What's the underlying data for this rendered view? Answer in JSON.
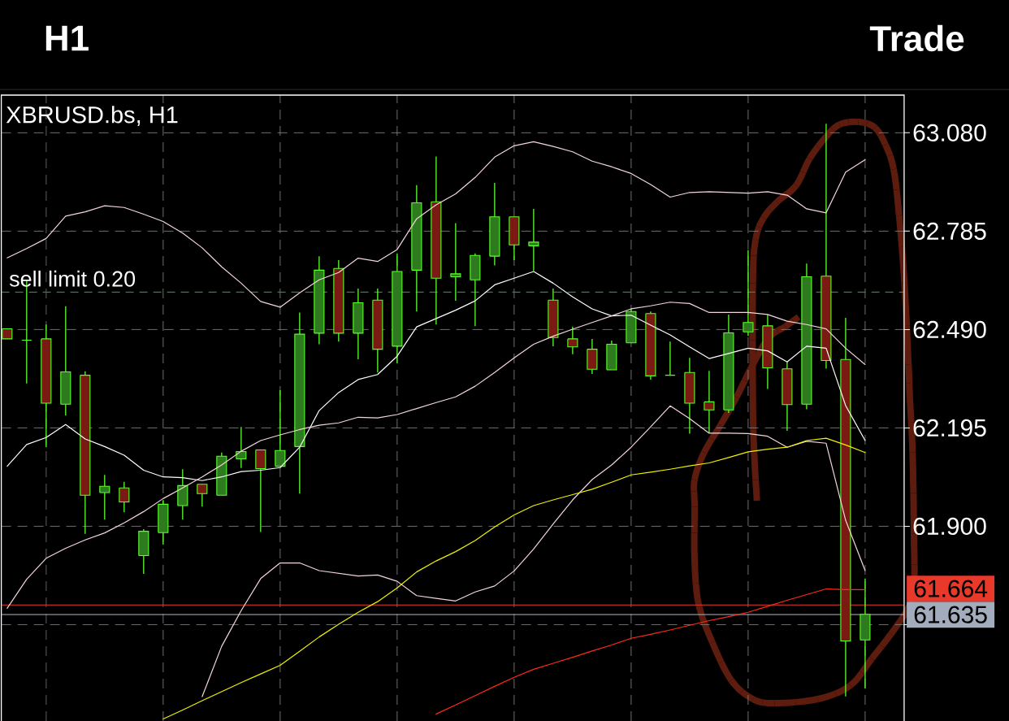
{
  "chart_data": {
    "type": "candlestick",
    "title": "XBRUSD.bs, H1",
    "annotations": [
      "H1",
      "Trade"
    ],
    "categories": [
      null,
      null,
      null,
      null,
      null,
      null,
      null,
      null,
      null,
      null,
      null,
      null,
      null,
      null,
      null,
      null,
      null,
      null,
      null,
      null,
      null,
      null,
      null,
      null,
      null,
      null,
      null,
      null,
      null,
      null,
      null,
      null,
      null,
      null,
      null,
      null,
      null,
      null,
      null,
      null,
      null,
      null,
      null,
      null,
      null
    ],
    "ohlc": [
      [
        62.492,
        62.492,
        62.462,
        62.462
      ],
      [
        62.458,
        62.637,
        62.328,
        62.458
      ],
      [
        62.462,
        62.505,
        62.137,
        62.269
      ],
      [
        62.266,
        62.56,
        62.232,
        62.363
      ],
      [
        62.353,
        62.365,
        61.877,
        61.993
      ],
      [
        62.001,
        62.054,
        61.92,
        62.02
      ],
      [
        62.015,
        62.033,
        61.942,
        61.973
      ],
      [
        61.812,
        61.891,
        61.757,
        61.885
      ],
      [
        61.881,
        61.978,
        61.845,
        61.966
      ],
      [
        61.962,
        62.071,
        61.92,
        62.022
      ],
      [
        62.026,
        62.026,
        61.959,
        61.998
      ],
      [
        61.993,
        62.121,
        61.993,
        62.11
      ],
      [
        62.102,
        62.198,
        62.075,
        62.124
      ],
      [
        62.129,
        62.129,
        61.883,
        62.073
      ],
      [
        62.08,
        62.308,
        62.08,
        62.127
      ],
      [
        62.139,
        62.541,
        61.998,
        62.476
      ],
      [
        62.479,
        62.71,
        62.446,
        62.668
      ],
      [
        62.673,
        62.698,
        62.454,
        62.479
      ],
      [
        62.479,
        62.613,
        62.401,
        62.57
      ],
      [
        62.578,
        62.613,
        62.361,
        62.431
      ],
      [
        62.44,
        62.718,
        62.389,
        62.664
      ],
      [
        62.668,
        62.923,
        62.544,
        62.87
      ],
      [
        62.873,
        63.009,
        62.505,
        62.644
      ],
      [
        62.648,
        62.809,
        62.576,
        62.657
      ],
      [
        62.639,
        62.718,
        62.5,
        62.712
      ],
      [
        62.71,
        62.93,
        62.682,
        62.828
      ],
      [
        62.828,
        62.828,
        62.698,
        62.744
      ],
      [
        62.741,
        62.852,
        62.666,
        62.752
      ],
      [
        62.578,
        62.613,
        62.44,
        62.466
      ],
      [
        62.462,
        62.499,
        62.416,
        62.438
      ],
      [
        62.431,
        62.462,
        62.357,
        62.371
      ],
      [
        62.369,
        62.457,
        62.369,
        62.446
      ],
      [
        62.45,
        62.552,
        62.45,
        62.544
      ],
      [
        62.538,
        62.544,
        62.34,
        62.351
      ],
      [
        62.353,
        62.454,
        62.353,
        62.353
      ],
      [
        62.361,
        62.405,
        62.178,
        62.269
      ],
      [
        62.273,
        62.366,
        62.179,
        62.249
      ],
      [
        62.249,
        62.535,
        62.24,
        62.48
      ],
      [
        62.483,
        62.728,
        62.471,
        62.511
      ],
      [
        62.501,
        62.535,
        62.312,
        62.375
      ],
      [
        62.372,
        62.393,
        62.186,
        62.265
      ],
      [
        62.266,
        62.688,
        62.251,
        62.648
      ],
      [
        62.65,
        63.107,
        62.373,
        62.397
      ],
      [
        62.4,
        62.525,
        61.39,
        61.556
      ],
      [
        61.559,
        61.743,
        61.414,
        61.636
      ]
    ],
    "color": "#5cff2e",
    "colors": [
      "#7a1a12",
      "#5cff2e",
      "#7a1a12",
      "#2e7a1f",
      "#7a1a12",
      "#2e7a1f",
      "#7a1a12",
      "#2e7a1f",
      "#2e7a1f",
      "#2e7a1f",
      "#7a1a12",
      "#2e7a1f",
      "#2e7a1f",
      "#7a1a12",
      "#2e7a1f",
      "#2e7a1f",
      "#2e7a1f",
      "#7a1a12",
      "#2e7a1f",
      "#7a1a12",
      "#2e7a1f",
      "#2e7a1f",
      "#7a1a12",
      "#2e7a1f",
      "#2e7a1f",
      "#2e7a1f",
      "#7a1a12",
      "#2e7a1f",
      "#7a1a12",
      "#7a1a12",
      "#7a1a12",
      "#2e7a1f",
      "#2e7a1f",
      "#7a1a12",
      "#5cff2e",
      "#7a1a12",
      "#7a1a12",
      "#2e7a1f",
      "#2e7a1f",
      "#7a1a12",
      "#7a1a12",
      "#2e7a1f",
      "#7a1a12",
      "#7a1a12",
      "#2e7a1f"
    ],
    "series": [
      {
        "type": "line",
        "color": "#f3d6dc",
        "values": [
          62.705,
          62.733,
          62.763,
          62.83,
          62.843,
          62.861,
          62.856,
          62.836,
          62.814,
          62.779,
          62.735,
          62.678,
          62.629,
          62.574,
          62.557,
          62.6,
          62.639,
          62.661,
          62.704,
          62.694,
          62.73,
          62.822,
          62.864,
          62.897,
          62.946,
          63.007,
          63.041,
          63.053,
          63.039,
          63.023,
          62.995,
          62.978,
          62.958,
          62.925,
          62.887,
          62.901,
          62.903,
          62.901,
          62.899,
          62.903,
          62.893,
          62.852,
          62.84,
          62.962,
          62.999
        ]
      },
      {
        "type": "line",
        "color": "#ffffff",
        "values": [
          62.08,
          62.145,
          62.166,
          62.205,
          62.162,
          62.139,
          62.113,
          62.068,
          62.048,
          62.046,
          62.037,
          62.048,
          62.064,
          62.068,
          62.076,
          62.137,
          62.247,
          62.301,
          62.34,
          62.355,
          62.41,
          62.498,
          62.523,
          62.548,
          62.576,
          62.624,
          62.644,
          62.664,
          62.629,
          62.588,
          62.552,
          62.531,
          62.533,
          62.503,
          62.474,
          62.438,
          62.403,
          62.418,
          62.434,
          62.426,
          62.393,
          62.44,
          62.434,
          62.262,
          62.157
        ]
      },
      {
        "type": "line",
        "color": "#f3d6dc",
        "values": [
          61.654,
          61.741,
          61.804,
          61.834,
          61.859,
          61.88,
          61.91,
          61.944,
          61.983,
          62.015,
          62.048,
          62.084,
          62.125,
          62.157,
          62.174,
          62.19,
          62.203,
          62.21,
          62.227,
          62.225,
          62.235,
          62.253,
          62.271,
          62.288,
          62.32,
          62.361,
          62.405,
          62.446,
          62.47,
          62.491,
          62.511,
          62.531,
          62.552,
          62.561,
          62.572,
          62.568,
          62.541,
          62.541,
          62.541,
          62.535,
          62.515,
          62.505,
          62.492,
          62.434,
          62.385
        ]
      },
      {
        "type": "line",
        "color": "#f3d6dc",
        "values": [
          null,
          null,
          null,
          null,
          null,
          null,
          null,
          null,
          null,
          null,
          61.389,
          61.54,
          61.647,
          61.743,
          61.79,
          61.79,
          61.767,
          61.759,
          61.751,
          61.754,
          61.735,
          61.692,
          61.684,
          61.676,
          61.703,
          61.721,
          61.766,
          61.832,
          61.907,
          61.979,
          62.04,
          62.084,
          62.137,
          62.198,
          62.261,
          62.223,
          62.179,
          62.179,
          62.178,
          62.17,
          62.137,
          62.155,
          62.149,
          61.918,
          61.767
        ]
      },
      {
        "type": "line",
        "color": "#f0f000",
        "values": [
          null,
          null,
          null,
          null,
          null,
          null,
          null,
          null,
          61.322,
          61.349,
          61.377,
          61.404,
          61.431,
          61.457,
          61.483,
          61.525,
          61.568,
          61.606,
          61.642,
          61.674,
          61.715,
          61.763,
          61.796,
          61.824,
          61.857,
          61.898,
          61.934,
          61.962,
          61.979,
          61.995,
          62.011,
          62.032,
          62.054,
          62.062,
          62.071,
          62.081,
          62.09,
          62.106,
          62.123,
          62.131,
          62.137,
          62.157,
          62.164,
          62.144,
          62.121
        ]
      },
      {
        "type": "line",
        "color": "#ff2a1a",
        "values": [
          null,
          null,
          null,
          null,
          null,
          null,
          null,
          null,
          null,
          null,
          null,
          null,
          null,
          null,
          null,
          null,
          null,
          null,
          null,
          null,
          null,
          null,
          61.337,
          61.364,
          61.392,
          61.42,
          61.447,
          61.471,
          61.489,
          61.507,
          61.526,
          61.544,
          61.564,
          61.576,
          61.589,
          61.603,
          61.617,
          61.629,
          61.642,
          61.66,
          61.678,
          61.695,
          61.712,
          61.71,
          61.71
        ]
      }
    ],
    "ylim": [
      61.316,
      63.193
    ],
    "yticks": [
      {
        "value": 61.605,
        "label": null
      },
      {
        "value": 61.9,
        "label": "61.900"
      },
      62.195,
      {
        "value": 62.49,
        "label": "62.490"
      },
      62.785,
      {
        "value": 63.08,
        "label": "63.080"
      }
    ],
    "tick_labels": "y",
    "grid": true,
    "ref_lines": [
      {
        "axis": "y",
        "value": 62.602,
        "label": "sell limit 0.20",
        "color": "#2f8f2f",
        "line_style": "dashed"
      },
      {
        "axis": "y",
        "value": 61.664,
        "label": "61.664",
        "color": "#e8392b",
        "line_style": "solid"
      },
      {
        "axis": "y",
        "value": 61.635,
        "label": "61.635",
        "color": "#a3acbc",
        "line_style": "solid"
      }
    ]
  }
}
